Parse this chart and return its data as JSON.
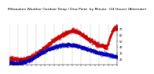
{
  "title": "Milwaukee Weather Outdoor Temp / Dew Point  by Minute  (24 Hours) (Alternate)",
  "title_fontsize": 3.2,
  "background_color": "#ffffff",
  "plot_bg_color": "#ffffff",
  "grid_color": "#888888",
  "temp_color": "#cc0000",
  "dew_color": "#0000bb",
  "ylim": [
    10,
    78
  ],
  "xlim": [
    0,
    1440
  ],
  "yticks": [
    70,
    60,
    50,
    40,
    30,
    20
  ],
  "n_points": 1440,
  "vgrid_interval": 120
}
